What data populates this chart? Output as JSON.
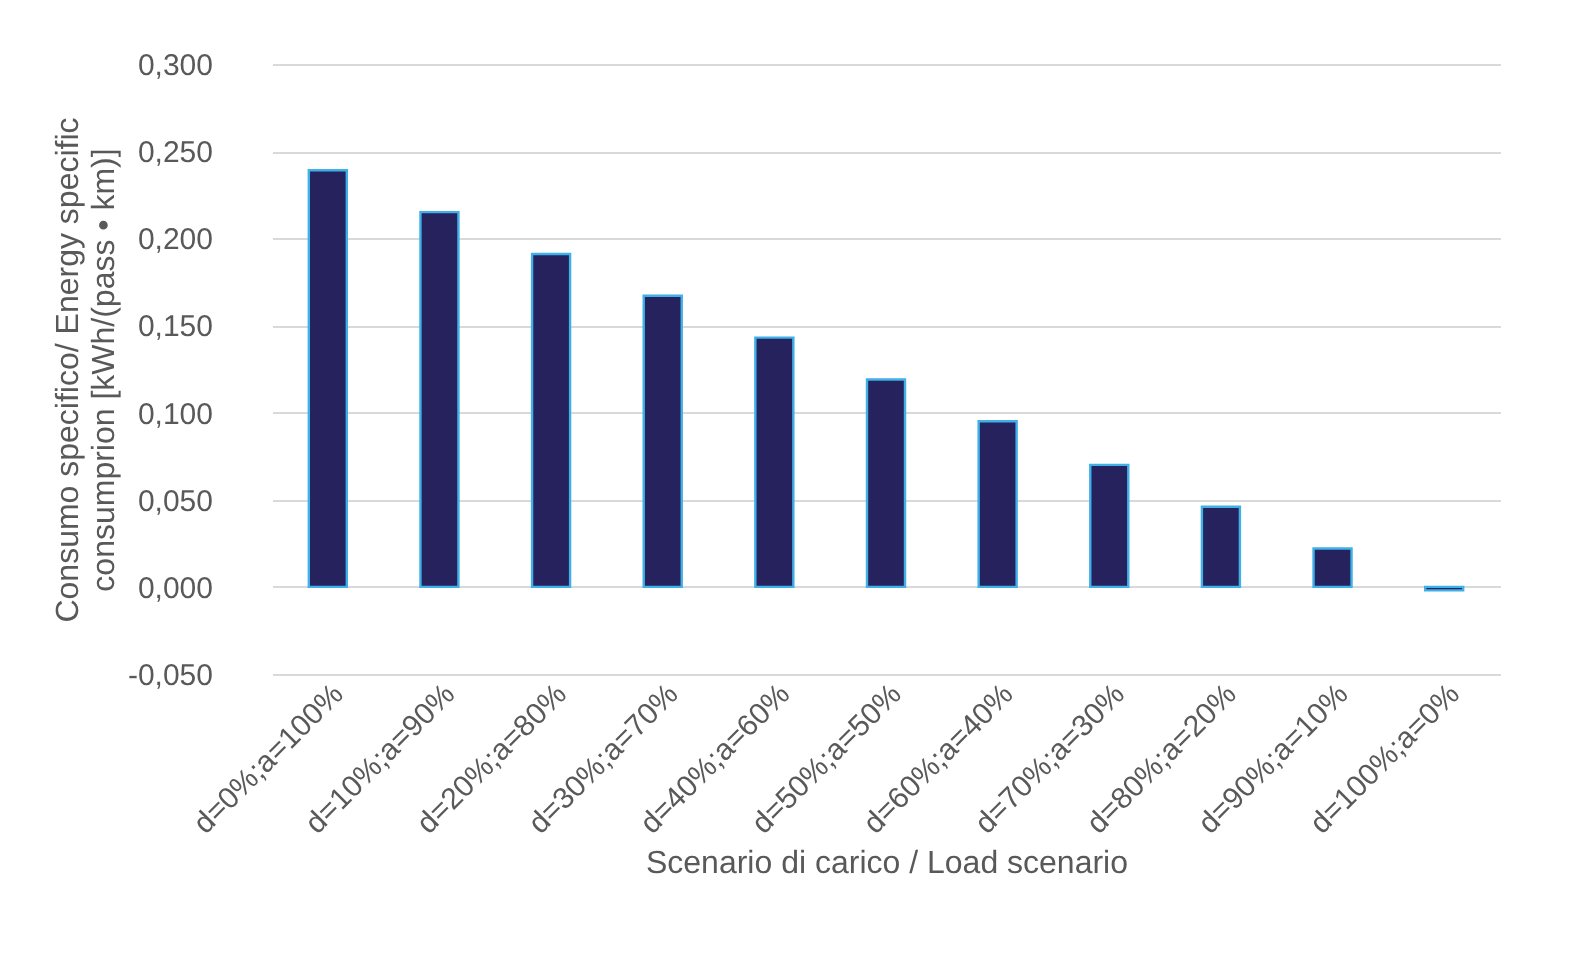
{
  "chart_data": {
    "type": "bar",
    "xlabel": "Scenario di carico / Load scenario",
    "ylabel": "Consumo specifico/ Energy specific consumprion [kWh/(pass • km)]",
    "categories": [
      "d=0%;a=100%",
      "d=10%;a=90%",
      "d=20%;a=80%",
      "d=30%;a=70%",
      "d=40%;a=60%",
      "d=50%;a=50%",
      "d=60%;a=40%",
      "d=70%;a=30%",
      "d=80%;a=20%",
      "d=90%;a=10%",
      "d=100%;a=0%"
    ],
    "values": [
      0.239,
      0.215,
      0.191,
      0.167,
      0.143,
      0.119,
      0.095,
      0.07,
      0.046,
      0.022,
      -0.002
    ],
    "color": "#25225e",
    "ylim": [
      -0.05,
      0.3
    ],
    "yticks": [
      {
        "value": -0.05,
        "label": "-0,050"
      },
      {
        "value": 0,
        "label": "0,000"
      },
      {
        "value": 0.05,
        "label": "0,050"
      },
      {
        "value": 0.1,
        "label": "0,100"
      },
      {
        "value": 0.15,
        "label": "0,150"
      },
      {
        "value": 0.2,
        "label": "0,200"
      },
      {
        "value": 0.25,
        "label": "0,250"
      },
      {
        "value": 0.3,
        "label": "0,300"
      }
    ],
    "grid": "y"
  }
}
